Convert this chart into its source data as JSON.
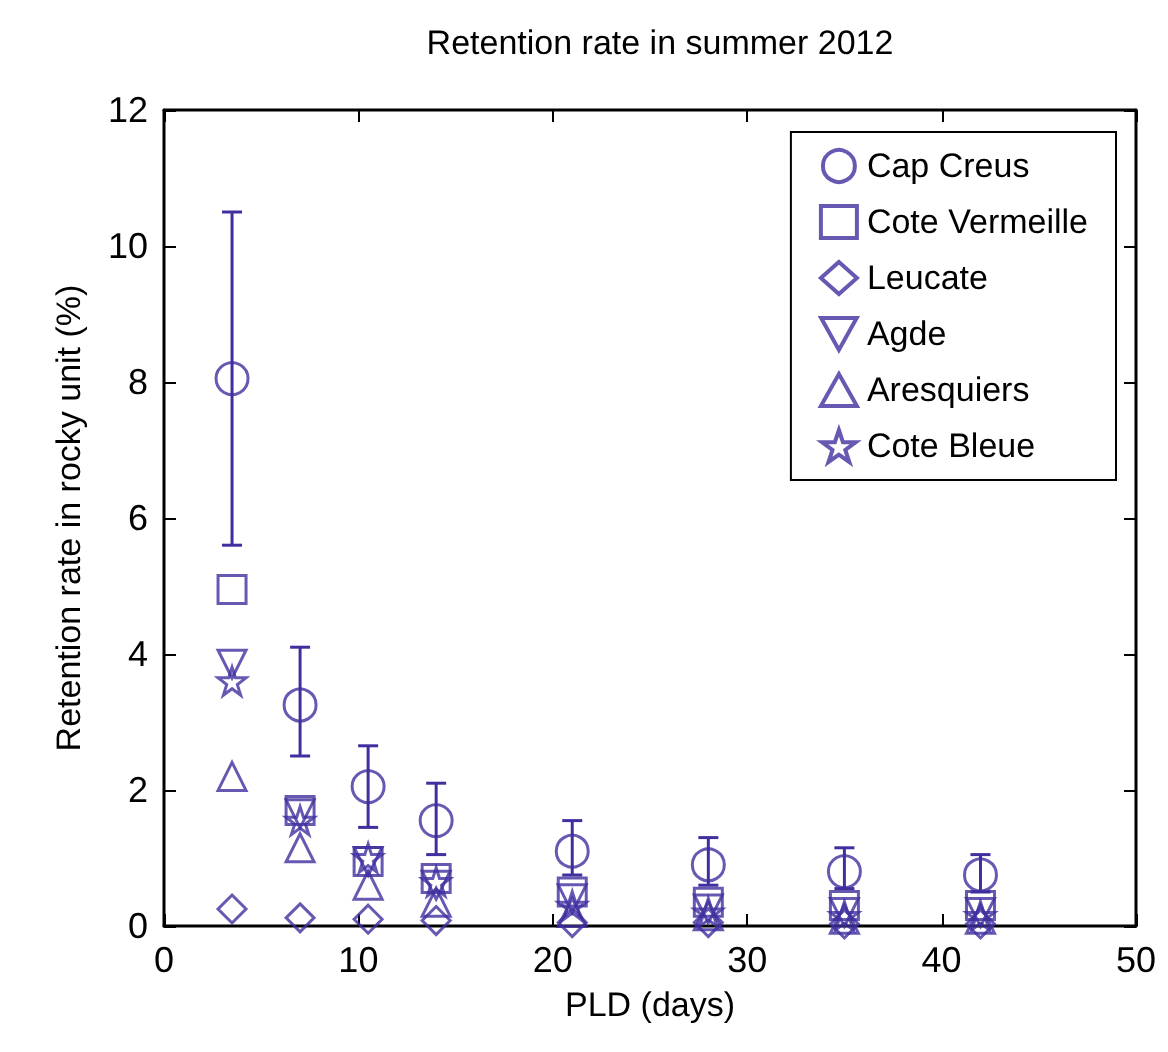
{
  "chart_data": {
    "type": "scatter",
    "title": "Retention rate in summer 2012",
    "xlabel": "PLD (days)",
    "ylabel": "Retention rate in rocky unit (%)",
    "x": [
      3.5,
      7,
      10.5,
      14,
      21,
      28,
      35,
      42
    ],
    "xlim": [
      0,
      50
    ],
    "xticks": [
      0,
      10,
      20,
      30,
      40,
      50
    ],
    "ylim": [
      0,
      12
    ],
    "yticks": [
      0,
      2,
      4,
      6,
      8,
      10,
      12
    ],
    "grid": false,
    "legend": "top right",
    "series": [
      {
        "name": "Cap Creus",
        "color": "#3f2f9f",
        "marker": "circle",
        "values": [
          8.05,
          3.25,
          2.05,
          1.55,
          1.1,
          0.9,
          0.8,
          0.75
        ],
        "errors": [
          [
            5.6,
            10.5
          ],
          [
            2.5,
            4.1
          ],
          [
            1.45,
            2.65
          ],
          [
            1.05,
            2.1
          ],
          [
            0.75,
            1.55
          ],
          [
            0.6,
            1.3
          ],
          [
            0.55,
            1.15
          ],
          [
            0.5,
            1.05
          ]
        ]
      },
      {
        "name": "Cote Vermeille",
        "color": "#3f2f9f",
        "marker": "square",
        "values": [
          4.95,
          1.7,
          0.95,
          0.7,
          0.5,
          0.35,
          0.3,
          0.3
        ]
      },
      {
        "name": "Leucate",
        "color": "#3f2f9f",
        "marker": "diamond",
        "values": [
          0.25,
          0.12,
          0.1,
          0.08,
          0.05,
          0.05,
          0.03,
          0.03
        ]
      },
      {
        "name": "Agde",
        "color": "#3f2f9f",
        "marker": "triangle_down",
        "values": [
          3.85,
          1.65,
          0.95,
          0.6,
          0.4,
          0.25,
          0.2,
          0.2
        ]
      },
      {
        "name": "Aresquiers",
        "color": "#3f2f9f",
        "marker": "triangle",
        "values": [
          2.2,
          1.15,
          0.6,
          0.35,
          0.2,
          0.15,
          0.1,
          0.1
        ]
      },
      {
        "name": "Cote Bleue",
        "color": "#3f2f9f",
        "marker": "star",
        "values": [
          3.6,
          1.55,
          1.0,
          0.65,
          0.3,
          0.2,
          0.15,
          0.15
        ]
      }
    ]
  }
}
